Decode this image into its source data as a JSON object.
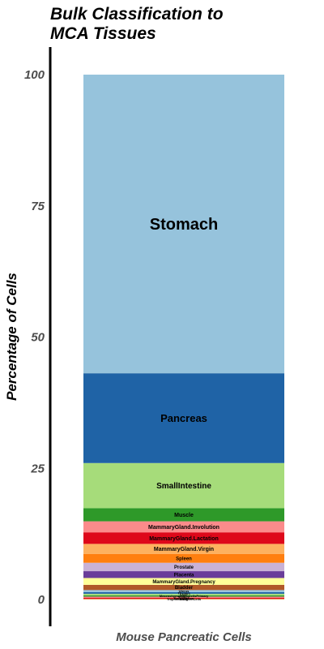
{
  "chart_data": {
    "type": "bar",
    "stacked": true,
    "title": "Bulk Classification to MCA Tissues",
    "title_lines": [
      "Bulk Classification to",
      "MCA Tissues"
    ],
    "xlabel": "",
    "ylabel": "Percentage of Cells",
    "categories": [
      "Mouse Pancreatic Cells"
    ],
    "ylim": [
      0,
      100
    ],
    "yticks": [
      "0",
      "25",
      "50",
      "75",
      "100"
    ],
    "grid": false,
    "legend": "none",
    "segments": [
      {
        "name": "Stomach",
        "value": 56.9,
        "color": "#96c3dc",
        "show_label": true
      },
      {
        "name": "Pancreas",
        "value": 17.1,
        "color": "#1f63a6",
        "show_label": true
      },
      {
        "name": "SmallIntestine",
        "value": 8.6,
        "color": "#a6dc7a",
        "show_label": true
      },
      {
        "name": "Muscle",
        "value": 2.5,
        "color": "#2e9929",
        "show_label": true
      },
      {
        "name": "MammaryGland.Involution",
        "value": 2.1,
        "color": "#fb8b8b",
        "show_label": true
      },
      {
        "name": "MammaryGland.Lactation",
        "value": 2.2,
        "color": "#de081a",
        "show_label": true
      },
      {
        "name": "MammaryGland.Virgin",
        "value": 1.9,
        "color": "#fdb15f",
        "show_label": true
      },
      {
        "name": "Spleen",
        "value": 1.7,
        "color": "#ff7f0f",
        "show_label": true
      },
      {
        "name": "Prostate",
        "value": 1.6,
        "color": "#c9b2d6",
        "show_label": true
      },
      {
        "name": "Placenta",
        "value": 1.3,
        "color": "#6a3d9a",
        "show_label": true
      },
      {
        "name": "MammaryGland.Pregnancy",
        "value": 1.3,
        "color": "#ffff99",
        "show_label": true
      },
      {
        "name": "Bladder",
        "value": 1.0,
        "color": "#b15928",
        "show_label": true
      },
      {
        "name": "Uterus",
        "value": 0.4,
        "color": "#96c3dc",
        "show_label": true
      },
      {
        "name": "Thymus",
        "value": 0.3,
        "color": "#1f63a6",
        "show_label": true
      },
      {
        "name": "Liver",
        "value": 0.3,
        "color": "#a6dc7a",
        "show_label": true
      },
      {
        "name": "MesenchymalStemCellsPrimary",
        "value": 0.25,
        "color": "#2e9929",
        "show_label": true
      },
      {
        "name": "Kidney",
        "value": 0.2,
        "color": "#fb8b8b",
        "show_label": true
      },
      {
        "name": "BoneMarrow",
        "value": 0.2,
        "color": "#de081a",
        "show_label": true
      },
      {
        "name": "Lung",
        "value": 0.1,
        "color": "#fdb15f",
        "show_label": true
      },
      {
        "name": "TrophoblastStemCells",
        "value": 0.05,
        "color": "#b15928",
        "show_label": true
      }
    ]
  }
}
